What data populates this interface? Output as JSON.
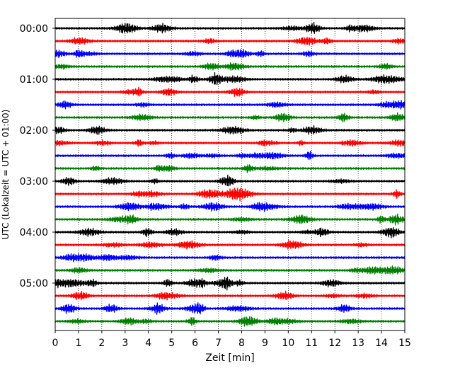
{
  "chart_data": {
    "type": "line",
    "title": "",
    "xlabel": "Zeit  [min]",
    "ylabel": "UTC (Lokalzeit = UTC + 01:00)",
    "xlim": [
      0,
      15
    ],
    "x_ticks": [
      "0",
      "1",
      "2",
      "3",
      "4",
      "5",
      "6",
      "7",
      "8",
      "9",
      "10",
      "11",
      "12",
      "13",
      "14",
      "15"
    ],
    "y_tick_labels": [
      "00:00",
      "01:00",
      "02:00",
      "03:00",
      "04:00",
      "05:00"
    ],
    "y_tick_rows": [
      0,
      4,
      8,
      12,
      16,
      20
    ],
    "grid": "vertical dotted at each minute",
    "trace_count": 24,
    "trace_interval_minutes": 15,
    "trace_color_cycle": [
      "#000000",
      "#ff0000",
      "#0000ff",
      "#008000"
    ],
    "traces": [
      {
        "start": "00:00",
        "color": "#000000"
      },
      {
        "start": "00:15",
        "color": "#ff0000"
      },
      {
        "start": "00:30",
        "color": "#0000ff"
      },
      {
        "start": "00:45",
        "color": "#008000"
      },
      {
        "start": "01:00",
        "color": "#000000"
      },
      {
        "start": "01:15",
        "color": "#ff0000"
      },
      {
        "start": "01:30",
        "color": "#0000ff"
      },
      {
        "start": "01:45",
        "color": "#008000"
      },
      {
        "start": "02:00",
        "color": "#000000"
      },
      {
        "start": "02:15",
        "color": "#ff0000"
      },
      {
        "start": "02:30",
        "color": "#0000ff"
      },
      {
        "start": "02:45",
        "color": "#008000"
      },
      {
        "start": "03:00",
        "color": "#000000"
      },
      {
        "start": "03:15",
        "color": "#ff0000"
      },
      {
        "start": "03:30",
        "color": "#0000ff"
      },
      {
        "start": "03:45",
        "color": "#008000"
      },
      {
        "start": "04:00",
        "color": "#000000"
      },
      {
        "start": "04:15",
        "color": "#ff0000"
      },
      {
        "start": "04:30",
        "color": "#0000ff"
      },
      {
        "start": "04:45",
        "color": "#008000"
      },
      {
        "start": "05:00",
        "color": "#000000"
      },
      {
        "start": "05:15",
        "color": "#ff0000"
      },
      {
        "start": "05:30",
        "color": "#0000ff"
      },
      {
        "start": "05:45",
        "color": "#008000"
      }
    ]
  }
}
